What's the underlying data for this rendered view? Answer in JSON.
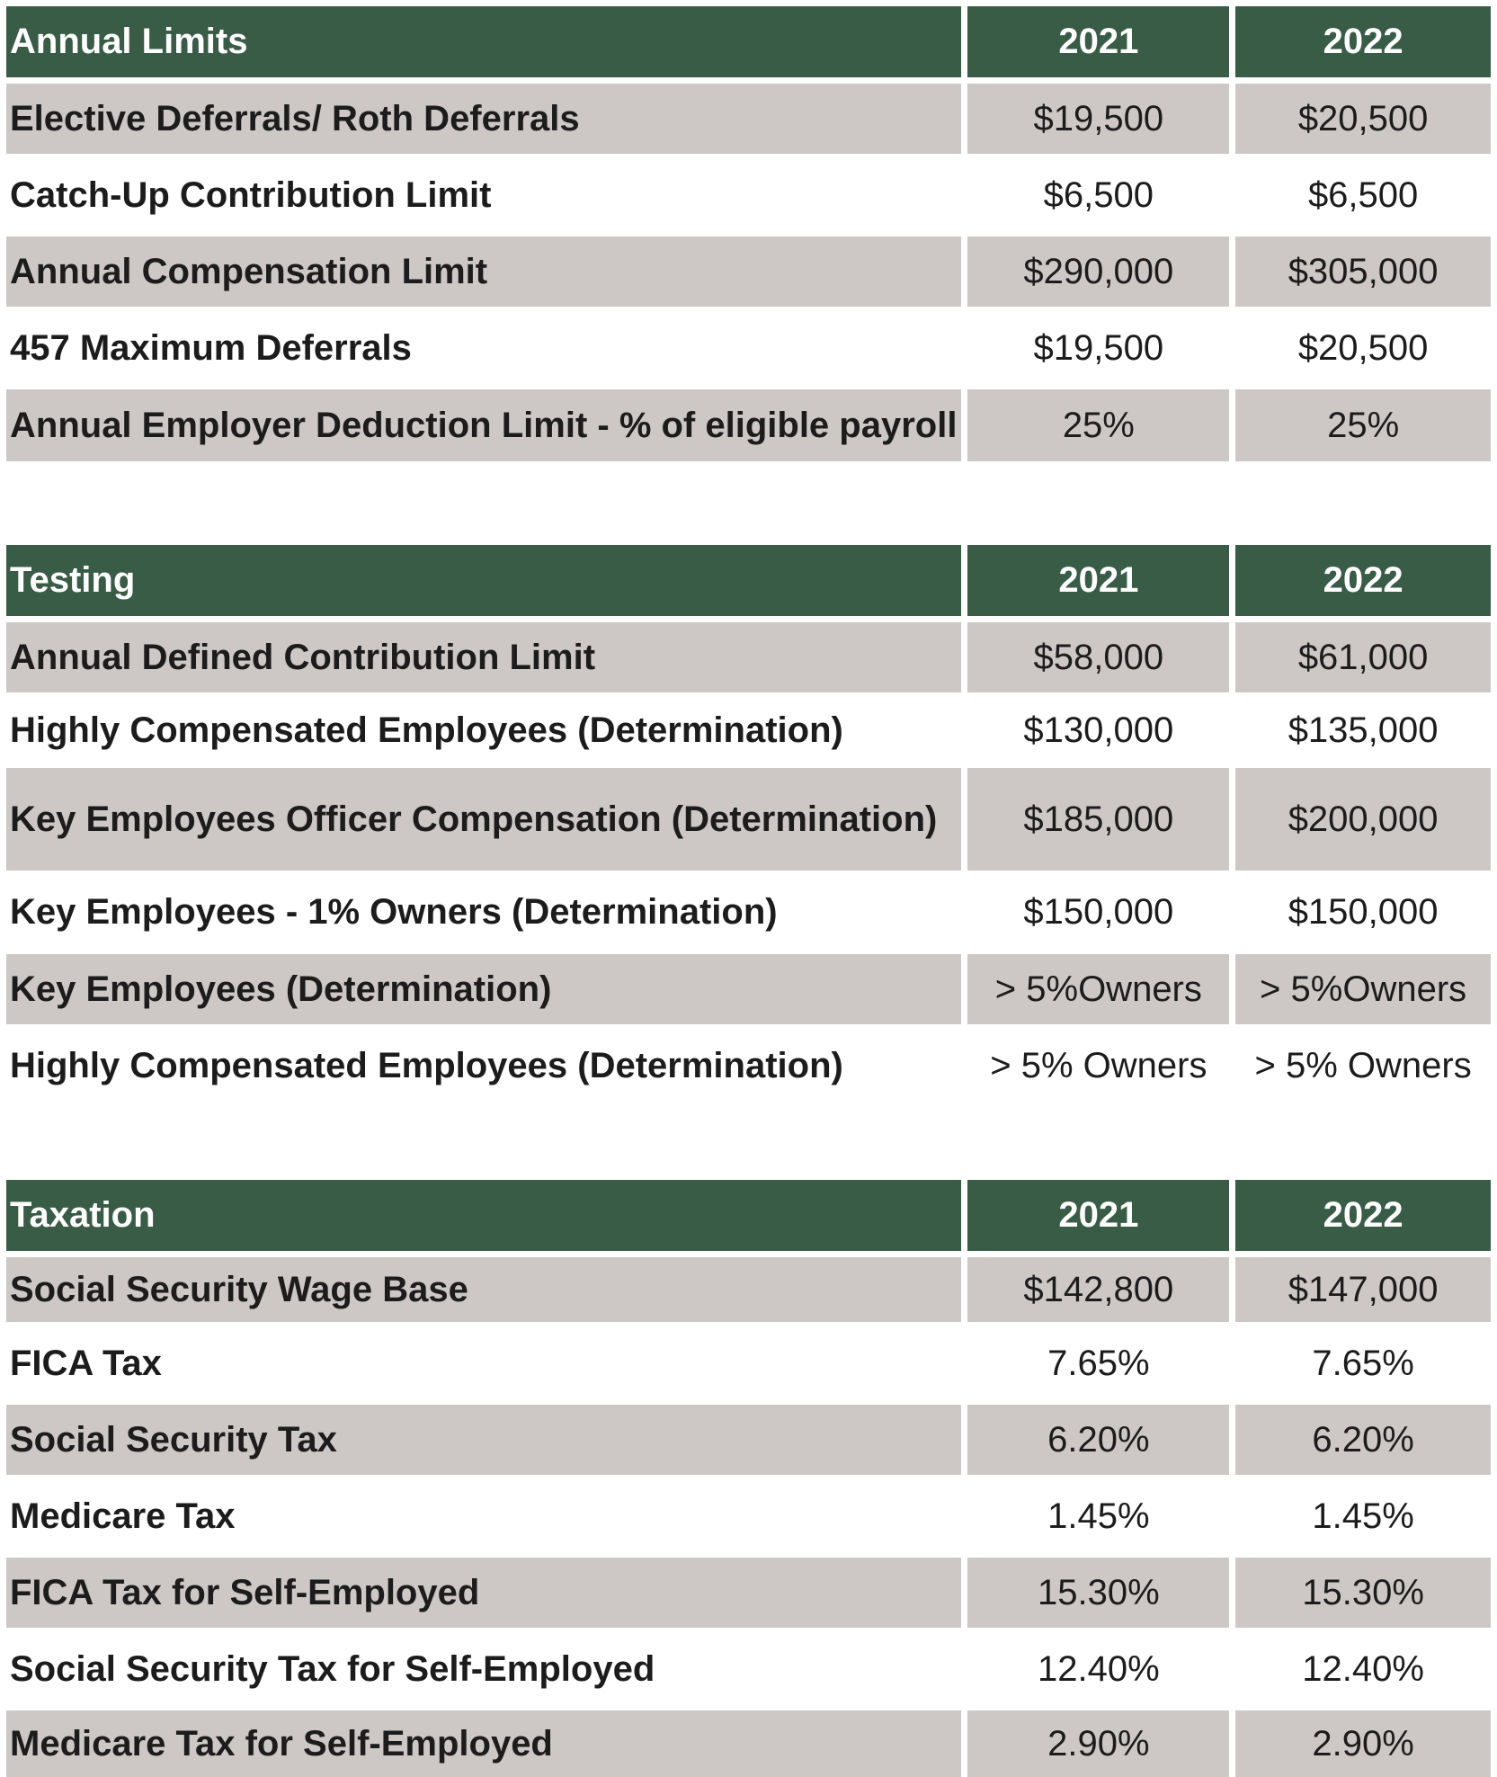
{
  "sections": [
    {
      "header": {
        "title": "Annual Limits",
        "year1": "2021",
        "year2": "2022"
      },
      "rows": [
        {
          "label": "Elective Deferrals/ Roth Deferrals",
          "v2021": "$19,500",
          "v2022": "$20,500"
        },
        {
          "label": "Catch-Up Contribution Limit",
          "v2021": "$6,500",
          "v2022": "$6,500"
        },
        {
          "label": "Annual Compensation Limit",
          "v2021": "$290,000",
          "v2022": "$305,000"
        },
        {
          "label": "457 Maximum Deferrals",
          "v2021": "$19,500",
          "v2022": "$20,500"
        },
        {
          "label": "Annual Employer Deduction Limit - % of eligible payroll",
          "v2021": "25%",
          "v2022": "25%"
        }
      ]
    },
    {
      "header": {
        "title": "Testing",
        "year1": "2021",
        "year2": "2022"
      },
      "rows": [
        {
          "label": "Annual Defined Contribution Limit",
          "v2021": "$58,000",
          "v2022": "$61,000"
        },
        {
          "label": "Highly Compensated Employees (Determination)",
          "v2021": "$130,000",
          "v2022": "$135,000"
        },
        {
          "label": "Key Employees Officer Compensation (Determination)",
          "v2021": "$185,000",
          "v2022": "$200,000"
        },
        {
          "label": "Key Employees - 1% Owners (Determination)",
          "v2021": "$150,000",
          "v2022": "$150,000"
        },
        {
          "label": "Key Employees (Determination)",
          "v2021": "> 5%Owners",
          "v2022": "> 5%Owners"
        },
        {
          "label": "Highly Compensated Employees (Determination)",
          "v2021": "> 5% Owners",
          "v2022": "> 5% Owners"
        }
      ]
    },
    {
      "header": {
        "title": "Taxation",
        "year1": "2021",
        "year2": "2022"
      },
      "rows": [
        {
          "label": "Social Security Wage Base",
          "v2021": "$142,800",
          "v2022": "$147,000"
        },
        {
          "label": "FICA Tax",
          "v2021": "7.65%",
          "v2022": "7.65%"
        },
        {
          "label": "Social Security Tax",
          "v2021": "6.20%",
          "v2022": "6.20%"
        },
        {
          "label": "Medicare Tax",
          "v2021": "1.45%",
          "v2022": "1.45%"
        },
        {
          "label": "FICA Tax for Self-Employed",
          "v2021": "15.30%",
          "v2022": "15.30%"
        },
        {
          "label": "Social Security Tax for Self-Employed",
          "v2021": "12.40%",
          "v2022": "12.40%"
        },
        {
          "label": "Medicare Tax for Self-Employed",
          "v2021": "2.90%",
          "v2022": "2.90%"
        }
      ]
    }
  ]
}
